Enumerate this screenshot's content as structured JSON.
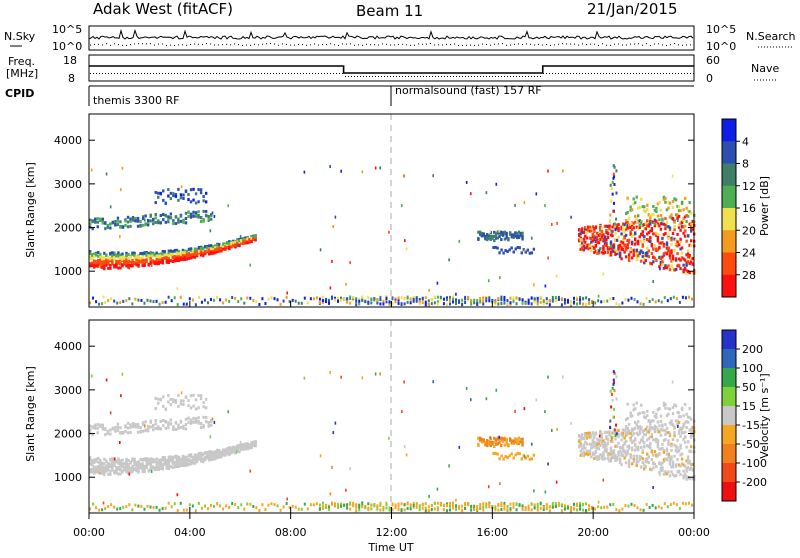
{
  "header": {
    "station": "Adak West (fitACF)",
    "beam": "Beam 11",
    "date": "21/Jan/2015"
  },
  "param_panels": {
    "nsky_label": "N.Sky",
    "nsearch_label": "N.Search",
    "nsky_ticks": [
      "10^5",
      "10^0"
    ],
    "nsky_right_ticks": [
      "10^5",
      "10^0"
    ],
    "freq_label_line1": "Freq.",
    "freq_label_line2": "[MHz]",
    "freq_ticks": [
      "18",
      "8"
    ],
    "nave_label": "Nave",
    "nave_ticks": [
      "60",
      "0"
    ],
    "cpid_label": "CPID",
    "cpid_segments": [
      {
        "label": "themis 3300 RF",
        "start_hour": 0
      },
      {
        "label": "normalsound (fast) 157 RF",
        "start_hour": 12
      }
    ]
  },
  "chart_data": [
    {
      "type": "heatmap",
      "name": "power",
      "ylabel": "Slant Range [km]",
      "ylim": [
        180,
        4600
      ],
      "yticks": [
        1000,
        2000,
        3000,
        4000
      ],
      "xlim": [
        0,
        24
      ],
      "colorbar": {
        "label": "Power [dB]",
        "ticks": [
          "4",
          "8",
          "12",
          "16",
          "20",
          "24",
          "28"
        ],
        "colors": [
          "#0b1fe6",
          "#2a4fb0",
          "#3f7f6a",
          "#4fae54",
          "#f0e04c",
          "#f39b1f",
          "#ff4a10",
          "#ff1010"
        ]
      }
    },
    {
      "type": "heatmap",
      "name": "velocity",
      "ylabel": "Slant Range [km]",
      "ylim": [
        180,
        4600
      ],
      "yticks": [
        1000,
        2000,
        3000,
        4000
      ],
      "xlim": [
        0,
        24
      ],
      "colorbar": {
        "label": "Velocity [m s⁻¹]",
        "ticks": [
          "200",
          "100",
          "50",
          "15",
          "-15",
          "-50",
          "-100",
          "-200"
        ],
        "colors": [
          "#2433c8",
          "#2f66b7",
          "#34a84a",
          "#7fd13a",
          "#c8c8c8",
          "#f5a623",
          "#f08020",
          "#f04a18",
          "#ee1010"
        ]
      }
    }
  ],
  "x_axis": {
    "ticks": [
      "00:00",
      "04:00",
      "08:00",
      "12:00",
      "16:00",
      "20:00",
      "00:00"
    ],
    "label": "Time UT"
  }
}
